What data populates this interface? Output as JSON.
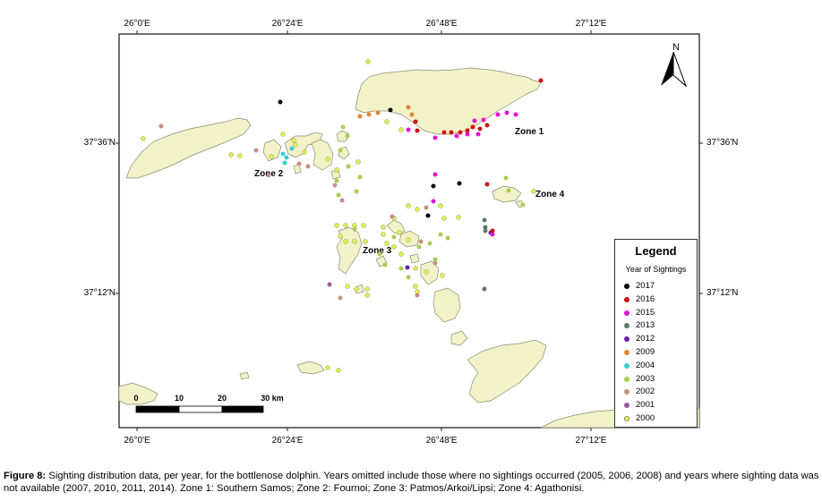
{
  "axes": {
    "top": [
      "26°0'E",
      "26°24'E",
      "26°48'E",
      "27°12'E"
    ],
    "bottom": [
      "26°0'E",
      "26°24'E",
      "26°48'E",
      "27°12'E"
    ],
    "left": [
      "37°36'N",
      "37°12'N"
    ],
    "right": [
      "37°36'N",
      "37°12'N"
    ]
  },
  "north_arrow": {
    "label": "N"
  },
  "zones": [
    {
      "name": "zone-1",
      "label": "Zone 1"
    },
    {
      "name": "zone-2",
      "label": "Zone 2"
    },
    {
      "name": "zone-3",
      "label": "Zone 3"
    },
    {
      "name": "zone-4",
      "label": "Zone 4"
    }
  ],
  "scale_bar": {
    "labels": [
      "0",
      "10",
      "20",
      "30 km"
    ]
  },
  "legend": {
    "title": "Legend",
    "subtitle": "Year of Sightings",
    "items": [
      {
        "year": "2017",
        "color": "#000000"
      },
      {
        "year": "2016",
        "color": "#cc1111"
      },
      {
        "year": "2015",
        "color": "#e012d0"
      },
      {
        "year": "2013",
        "color": "#5d7a62"
      },
      {
        "year": "2012",
        "color": "#6a1ea8"
      },
      {
        "year": "2009",
        "color": "#d98a3a"
      },
      {
        "year": "2004",
        "color": "#35d0d0"
      },
      {
        "year": "2003",
        "color": "#a8cc55"
      },
      {
        "year": "2002",
        "color": "#c49085"
      },
      {
        "year": "2001",
        "color": "#9a5a9a"
      },
      {
        "year": "2000",
        "color": "#e0f050"
      }
    ]
  },
  "colors": {
    "land": "#f2f2c8",
    "land_outline": "#8a8a70",
    "water": "#ffffff"
  },
  "caption": {
    "label": "Figure 8:",
    "text": " Sighting distribution data, per year, for the bottlenose dolphin. Years omitted include those where no sightings occurred (2005, 2006, 2008) and years where sighting data was not available (2007, 2010, 2011, 2014). Zone 1: Southern Samos; Zone 2: Fournoi; Zone 3: Patmos/Arkoi/Lipsi; Zone 4: Agathonisi."
  }
}
